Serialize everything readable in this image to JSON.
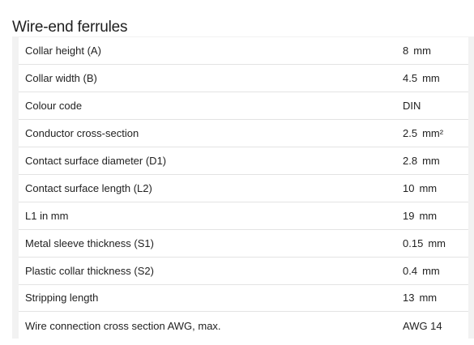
{
  "section": {
    "title": "Wire-end ferrules"
  },
  "specs": [
    {
      "label": "Collar height (A)",
      "value": "8",
      "unit": "mm"
    },
    {
      "label": "Collar width (B)",
      "value": "4.5",
      "unit": "mm"
    },
    {
      "label": "Colour code",
      "value": "DIN",
      "unit": ""
    },
    {
      "label": "Conductor cross-section",
      "value": "2.5",
      "unit": "mm²"
    },
    {
      "label": "Contact surface diameter (D1)",
      "value": "2.8",
      "unit": "mm"
    },
    {
      "label": "Contact surface length (L2)",
      "value": "10",
      "unit": "mm"
    },
    {
      "label": "L1 in mm",
      "value": "19",
      "unit": "mm"
    },
    {
      "label": "Metal sleeve thickness (S1)",
      "value": "0.15",
      "unit": "mm"
    },
    {
      "label": "Plastic collar thickness (S2)",
      "value": "0.4",
      "unit": "mm"
    },
    {
      "label": "Stripping length",
      "value": "13",
      "unit": "mm"
    },
    {
      "label": "Wire connection cross section AWG, max.",
      "value": "AWG 14",
      "unit": ""
    }
  ],
  "colors": {
    "panel_background": "#f2f2f2",
    "row_background": "#ffffff",
    "row_divider": "#e3e3e3",
    "text": "#222222"
  }
}
